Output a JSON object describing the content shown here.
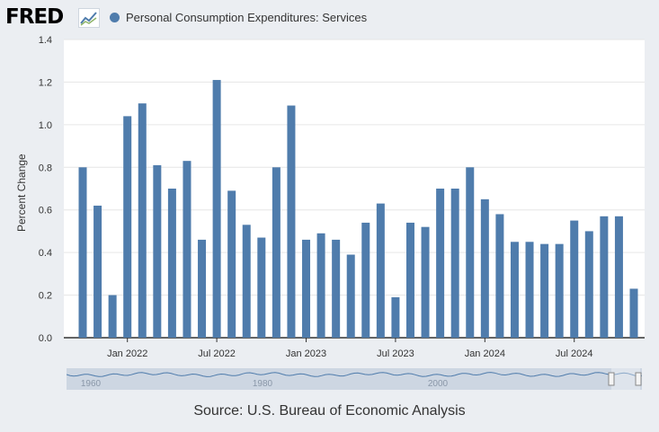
{
  "header": {
    "logo_text": "FRED",
    "logo_icon": "trend-chart-icon",
    "series_title": "Personal Consumption Expenditures: Services"
  },
  "colors": {
    "bar": "#4f7cac",
    "panel": "#ffffff",
    "page": "#ebeef2"
  },
  "chart_data": {
    "type": "bar",
    "title": "Personal Consumption Expenditures: Services",
    "ylabel": "Percent Change",
    "ylim": [
      0,
      1.4
    ],
    "yticks": [
      0.0,
      0.2,
      0.4,
      0.6,
      0.8,
      1.0,
      1.2,
      1.4
    ],
    "ytick_labels": [
      "0.0",
      "0.2",
      "0.4",
      "0.6",
      "0.8",
      "1.0",
      "1.2",
      "1.4"
    ],
    "grid": true,
    "months": [
      "2021-10",
      "2021-11",
      "2021-12",
      "2022-01",
      "2022-02",
      "2022-03",
      "2022-04",
      "2022-05",
      "2022-06",
      "2022-07",
      "2022-08",
      "2022-09",
      "2022-10",
      "2022-11",
      "2022-12",
      "2023-01",
      "2023-02",
      "2023-03",
      "2023-04",
      "2023-05",
      "2023-06",
      "2023-07",
      "2023-08",
      "2023-09",
      "2023-10",
      "2023-11",
      "2023-12",
      "2024-01",
      "2024-02",
      "2024-03",
      "2024-04",
      "2024-05",
      "2024-06",
      "2024-07",
      "2024-08",
      "2024-09",
      "2024-10",
      "2024-11"
    ],
    "values": [
      0.8,
      0.62,
      0.2,
      1.04,
      1.1,
      0.81,
      0.7,
      0.83,
      0.46,
      1.21,
      0.69,
      0.53,
      0.47,
      0.8,
      1.09,
      0.46,
      0.49,
      0.46,
      0.39,
      0.54,
      0.63,
      0.19,
      0.54,
      0.52,
      0.7,
      0.7,
      0.8,
      0.65,
      0.58,
      0.45,
      0.45,
      0.44,
      0.44,
      0.55,
      0.5,
      0.57,
      0.57,
      0.23
    ],
    "xtick_labels": [
      {
        "month": "2022-01",
        "label": "Jan 2022"
      },
      {
        "month": "2022-07",
        "label": "Jul 2022"
      },
      {
        "month": "2023-01",
        "label": "Jan 2023"
      },
      {
        "month": "2023-07",
        "label": "Jul 2023"
      },
      {
        "month": "2024-01",
        "label": "Jan 2024"
      },
      {
        "month": "2024-07",
        "label": "Jul 2024"
      }
    ]
  },
  "navigator": {
    "labels": [
      "1960",
      "1980",
      "2000"
    ]
  },
  "footer": {
    "source": "Source: U.S. Bureau of Economic Analysis"
  }
}
